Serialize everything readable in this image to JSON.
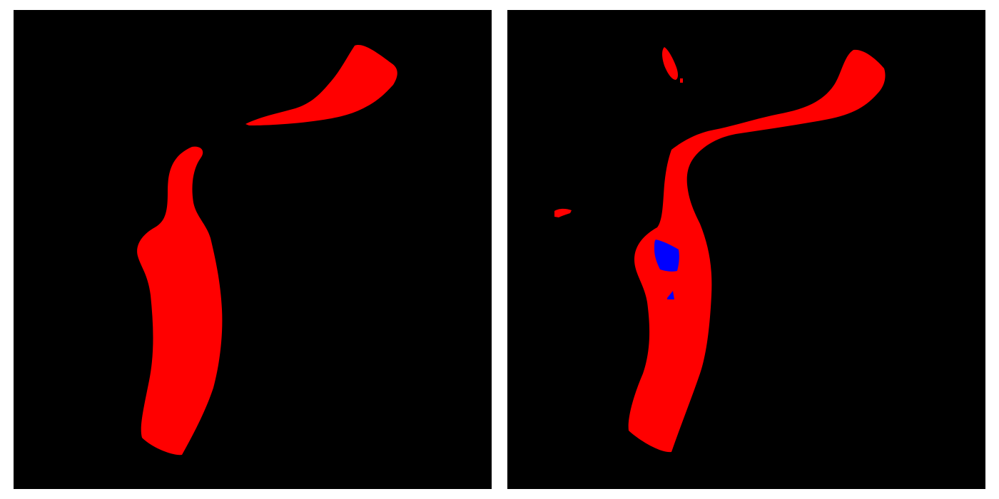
{
  "canvas": {
    "background_color": "#ffffff"
  },
  "panels": [
    {
      "id": "left-mask",
      "background_color": "#000000",
      "regions": [
        {
          "label": "red-class",
          "color": "#ff0000"
        }
      ]
    },
    {
      "id": "right-mask",
      "background_color": "#000000",
      "regions": [
        {
          "label": "red-class",
          "color": "#ff0000"
        },
        {
          "label": "blue-class",
          "color": "#0000ff"
        }
      ]
    }
  ]
}
